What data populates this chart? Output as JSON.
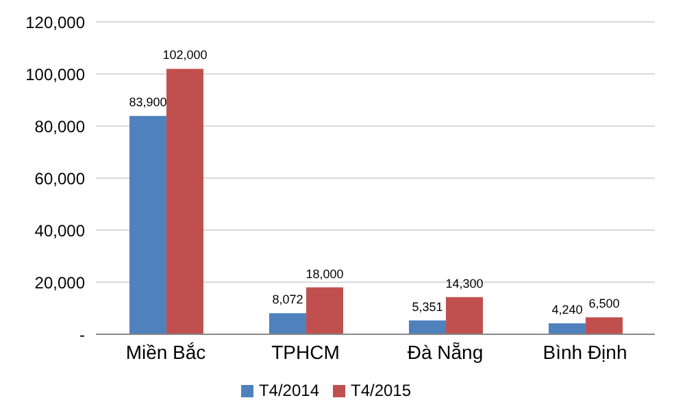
{
  "chart_data": {
    "type": "bar",
    "categories": [
      "Miền Bắc",
      "TPHCM",
      "Đà Nẵng",
      "Bình Định"
    ],
    "series": [
      {
        "name": "T4/2014",
        "color": "#4f81bd",
        "values": [
          83900,
          8072,
          5351,
          4240
        ],
        "value_labels": [
          "83,900",
          "8,072",
          "5,351",
          "4,240"
        ]
      },
      {
        "name": "T4/2015",
        "color": "#c0504d",
        "values": [
          102000,
          18000,
          14300,
          6500
        ],
        "value_labels": [
          "102,000",
          "18,000",
          "14,300",
          "6,500"
        ]
      }
    ],
    "ylim": [
      0,
      120000
    ],
    "yticks": [
      {
        "value": 0,
        "label": "-"
      },
      {
        "value": 20000,
        "label": "20,000"
      },
      {
        "value": 40000,
        "label": "40,000"
      },
      {
        "value": 60000,
        "label": "60,000"
      },
      {
        "value": 80000,
        "label": "80,000"
      },
      {
        "value": 100000,
        "label": "100,000"
      },
      {
        "value": 120000,
        "label": "120,000"
      }
    ],
    "grid": "y",
    "legend": "bottom"
  }
}
